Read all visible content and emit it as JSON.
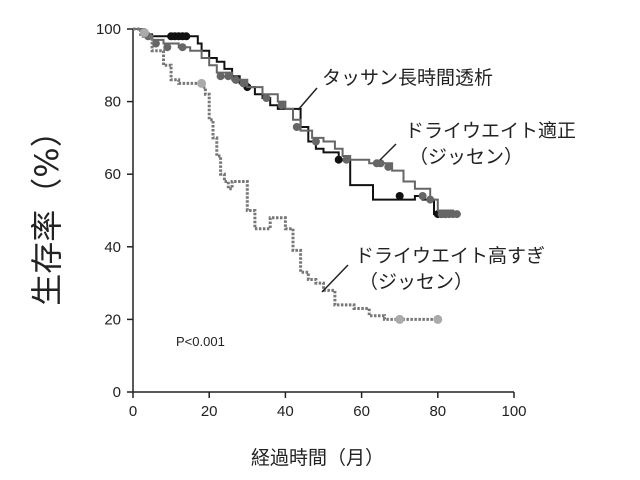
{
  "chart_data": {
    "type": "line",
    "subtype": "kaplan-meier step curves",
    "title": "",
    "xlabel": "経過時間（月）",
    "ylabel": "生存率（%）",
    "xlim": [
      0,
      100
    ],
    "ylim": [
      0,
      100
    ],
    "xticks": [
      0,
      20,
      40,
      60,
      80,
      100
    ],
    "yticks": [
      0,
      20,
      40,
      60,
      80,
      100
    ],
    "grid": false,
    "annotation_text": "P<0.001",
    "series": [
      {
        "name": "タッサン長時間透析",
        "name_lines": [
          "タッサン長時間透析"
        ],
        "color": "#111111",
        "style": "solid",
        "x": [
          0,
          3,
          5,
          8,
          15,
          17,
          18,
          20,
          22,
          24,
          26,
          28,
          30,
          32,
          34,
          36,
          38,
          40,
          44,
          46,
          48,
          50,
          54,
          57,
          63,
          67,
          74,
          76,
          79,
          80,
          86
        ],
        "y": [
          100,
          98.5,
          98,
          98,
          98,
          96,
          94,
          92,
          91,
          89,
          87,
          85,
          84,
          82,
          81,
          79,
          78,
          78,
          73,
          69,
          67,
          66,
          64,
          57,
          53,
          53,
          54,
          53,
          49,
          49,
          49
        ],
        "censor_x": [
          10,
          11,
          12,
          13,
          14,
          27,
          30,
          54,
          70,
          80,
          81,
          82
        ],
        "censor_y": [
          98,
          98,
          98,
          98,
          98,
          86,
          84,
          64,
          54,
          49,
          49,
          49
        ]
      },
      {
        "name": "ドライウエイト適正（ジッセン）",
        "name_lines": [
          "ドライウエイト適正",
          "（ジッセン）"
        ],
        "color": "#666666",
        "style": "solid",
        "x": [
          0,
          3,
          5,
          8,
          12,
          15,
          18,
          20,
          22,
          26,
          30,
          34,
          38,
          40,
          42,
          44,
          47,
          50,
          53,
          55,
          57,
          60,
          62,
          66,
          68,
          71,
          74,
          78,
          80,
          84,
          86
        ],
        "y": [
          100,
          98,
          97,
          96,
          95,
          94,
          92,
          90,
          88,
          86,
          84,
          82,
          80,
          78,
          75,
          72,
          70,
          69,
          67,
          65,
          64,
          64,
          63,
          63,
          61,
          58,
          56,
          53,
          50,
          49,
          49
        ],
        "censor_x": [
          4,
          6,
          9,
          13,
          23,
          25,
          27,
          29,
          35,
          39,
          43,
          48,
          56,
          64,
          65,
          67,
          76,
          78,
          81,
          82,
          83,
          84,
          85
        ],
        "censor_y": [
          98,
          96,
          95,
          95,
          87,
          87,
          86,
          85,
          81,
          79,
          73,
          69,
          64,
          63,
          63,
          62,
          54,
          53,
          49,
          49,
          49,
          49,
          49
        ]
      },
      {
        "name": "ドライウエイト高すぎ（ジッセン）",
        "name_lines": [
          "ドライウエイト高すぎ",
          "（ジッセン）"
        ],
        "color": "#777777",
        "style": "dotted",
        "x": [
          0,
          2,
          5,
          8,
          10,
          12,
          14,
          16,
          18,
          19,
          20,
          21,
          22,
          23,
          24,
          25,
          26,
          30,
          32,
          34,
          36,
          40,
          42,
          44,
          46,
          48,
          50,
          53,
          56,
          58,
          60,
          62,
          66,
          72,
          80
        ],
        "y": [
          100,
          98,
          94,
          90,
          86,
          85,
          85,
          85,
          84,
          82,
          75,
          70,
          65,
          60,
          58,
          56,
          58,
          50,
          45,
          45,
          48,
          45,
          39,
          33,
          31,
          30,
          28,
          24,
          24,
          23,
          23,
          21,
          20,
          20,
          20
        ],
        "censor_x": [
          3,
          18,
          70,
          80
        ],
        "censor_y": [
          99,
          85,
          20,
          20
        ]
      }
    ]
  },
  "colors": {
    "axis": "#222222",
    "annotation_pointer": "#222222"
  }
}
